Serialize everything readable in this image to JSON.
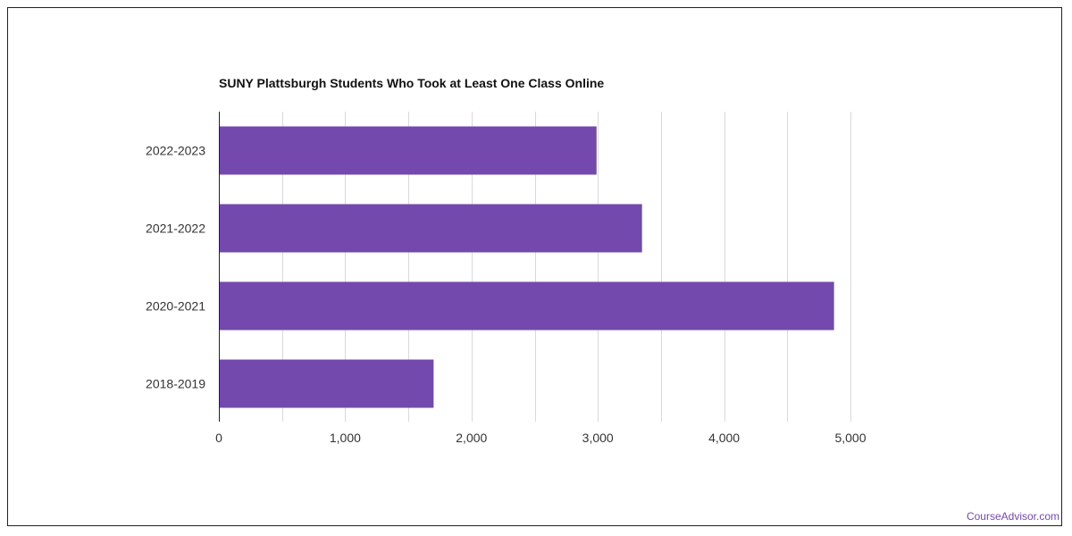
{
  "title": "SUNY Plattsburgh Students Who Took at Least One Class Online",
  "credit": "CourseAdvisor.com",
  "colors": {
    "bar": "#7349ad",
    "grid": "#d9d9d9",
    "axis": "#222222",
    "credit": "#7349ad"
  },
  "chart_data": {
    "type": "bar",
    "orientation": "horizontal",
    "title": "SUNY Plattsburgh Students Who Took at Least One Class Online",
    "categories": [
      "2022-2023",
      "2021-2022",
      "2020-2021",
      "2018-2019"
    ],
    "values": [
      2990,
      3350,
      4870,
      1700
    ],
    "xlim": [
      0,
      5000
    ],
    "xticks": [
      0,
      1000,
      2000,
      3000,
      4000,
      5000
    ],
    "xtick_labels": [
      "0",
      "1,000",
      "2,000",
      "3,000",
      "4,000",
      "5,000"
    ],
    "grid": true,
    "legend": "none"
  }
}
